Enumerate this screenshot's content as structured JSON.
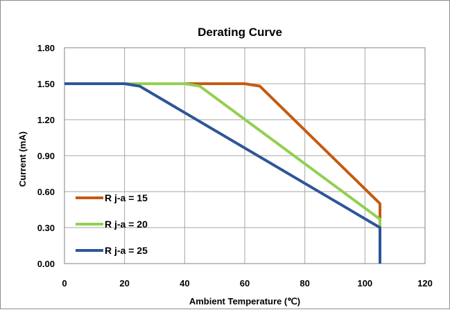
{
  "chart_data": {
    "type": "line",
    "title": "Derating Curve",
    "xlabel": "Ambient Temperature (℃)",
    "ylabel": "Current (mA)",
    "xlim": [
      0,
      120
    ],
    "ylim": [
      0,
      1.8
    ],
    "x_ticks": [
      "0",
      "20",
      "40",
      "60",
      "80",
      "100",
      "120"
    ],
    "y_ticks": [
      "0.00",
      "0.30",
      "0.60",
      "0.90",
      "1.20",
      "1.50",
      "1.80"
    ],
    "grid": true,
    "legend_position": "bottom-left",
    "series": [
      {
        "name": "R j-a = 15",
        "color": "#c55a11",
        "points": [
          [
            0,
            1.5
          ],
          [
            60,
            1.5
          ],
          [
            65,
            1.48
          ],
          [
            105,
            0.5
          ],
          [
            105,
            0
          ]
        ]
      },
      {
        "name": "R j-a = 20",
        "color": "#92d050",
        "points": [
          [
            0,
            1.5
          ],
          [
            40,
            1.5
          ],
          [
            45,
            1.48
          ],
          [
            105,
            0.37
          ],
          [
            105,
            0
          ]
        ]
      },
      {
        "name": "R j-a = 25",
        "color": "#2e5597",
        "points": [
          [
            0,
            1.5
          ],
          [
            20,
            1.5
          ],
          [
            25,
            1.48
          ],
          [
            105,
            0.3
          ],
          [
            105,
            0
          ]
        ]
      }
    ]
  }
}
